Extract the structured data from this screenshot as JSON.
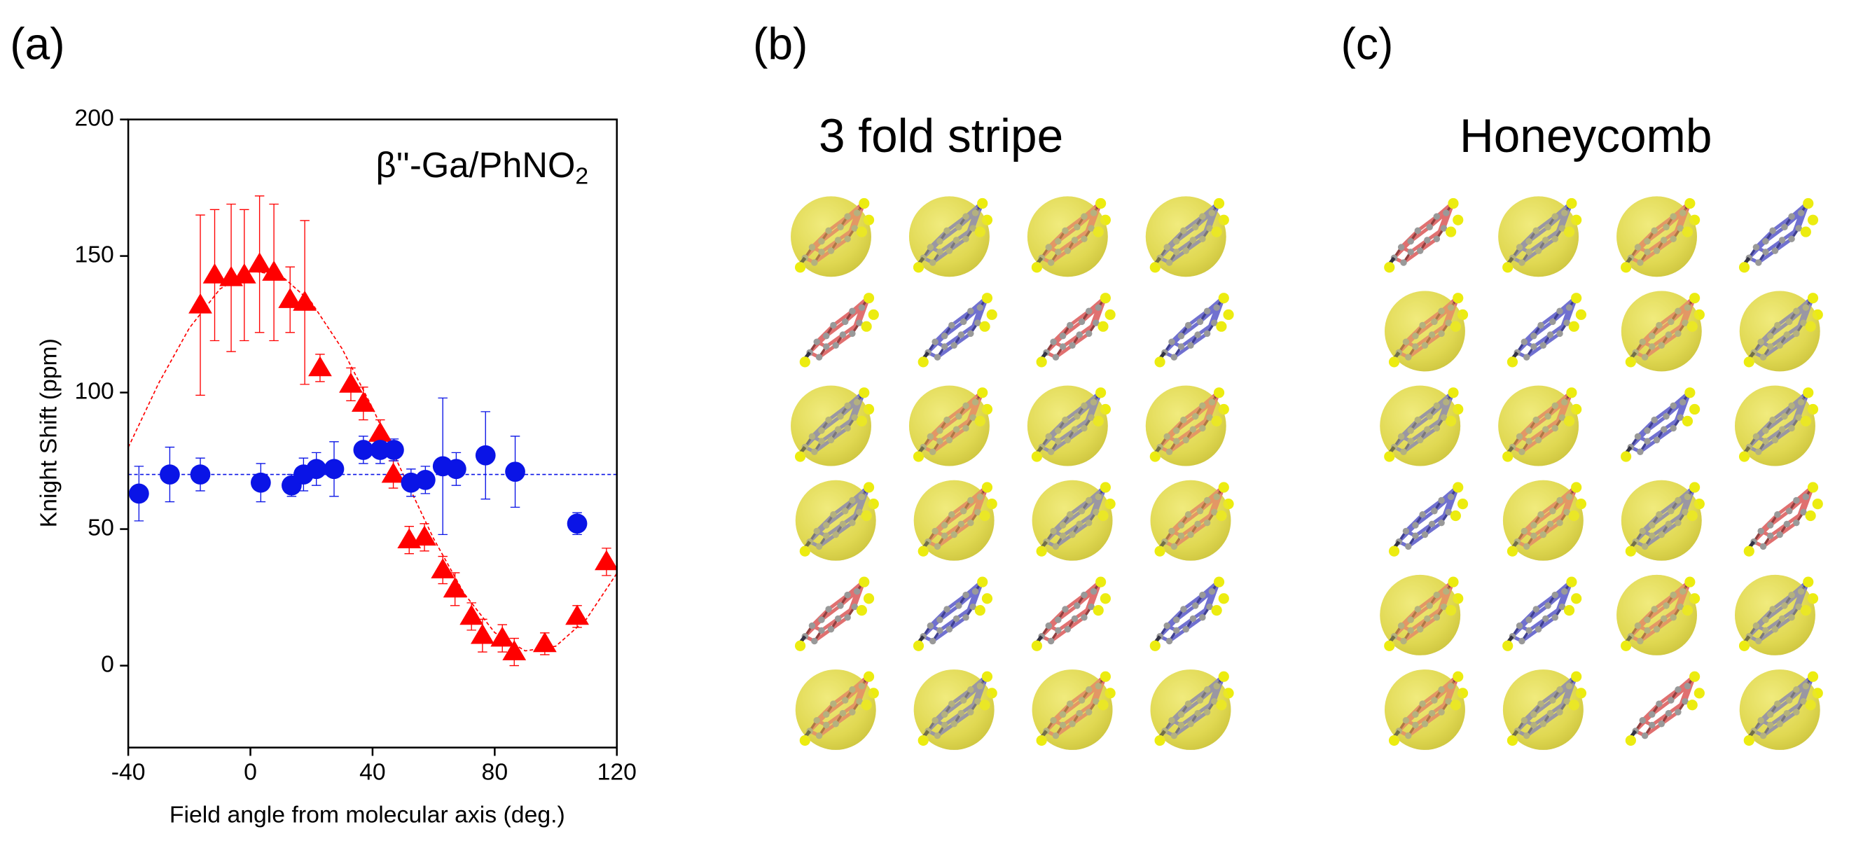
{
  "panels": {
    "a": "(a)",
    "b": "(b)",
    "c": "(c)"
  },
  "chart_data": {
    "type": "scatter",
    "annotation": "β''-Ga/PhNO",
    "annotation_sub": "2",
    "xlabel": "Field angle from molecular axis  (deg.)",
    "ylabel": "Knight Shift  (ppm)",
    "xlim": [
      -40,
      120
    ],
    "ylim": [
      -30,
      200
    ],
    "xticks": [
      -40,
      0,
      40,
      80,
      120
    ],
    "yticks": [
      0,
      50,
      100,
      150,
      200
    ],
    "series": [
      {
        "color": "#ff0000",
        "marker": "triangle",
        "x": [
          -16.4,
          -11.7,
          -6.3,
          -2,
          3,
          7.7,
          13,
          17.8,
          22.8,
          32.9,
          37,
          42.5,
          46.8,
          52,
          57,
          63,
          67,
          72.4,
          76,
          82.5,
          86.4,
          96.4,
          107,
          116.6
        ],
        "values": [
          132,
          143,
          142,
          143,
          147,
          144,
          134,
          133,
          109,
          103,
          96,
          85,
          70,
          46,
          47,
          35,
          28,
          18,
          11,
          10,
          5,
          8,
          18,
          38
        ],
        "errors": [
          33,
          24,
          27,
          24,
          25,
          25,
          12,
          30,
          5,
          6,
          6,
          5,
          5,
          5,
          5,
          5,
          6,
          5,
          6,
          5,
          5,
          4,
          4,
          5
        ]
      },
      {
        "color": "#0a14e6",
        "marker": "circle",
        "x": [
          -36.5,
          -26.4,
          -16.4,
          3.4,
          13.5,
          17.4,
          21.6,
          27.4,
          37,
          42.5,
          47,
          52.6,
          57.3,
          63,
          67.4,
          77,
          86.7,
          107
        ],
        "values": [
          63,
          70,
          70,
          67,
          66,
          70,
          72,
          72,
          79,
          79,
          79,
          67,
          68,
          73,
          72,
          77,
          71,
          52
        ],
        "errors": [
          10,
          10,
          6,
          7,
          4,
          6,
          6,
          10,
          5,
          5,
          4,
          5,
          5,
          25,
          6,
          16,
          13,
          4
        ]
      }
    ],
    "fits": [
      {
        "color": "#ff0000",
        "x": [
          -40,
          -30,
          -20,
          -10,
          0,
          10,
          20,
          30,
          40,
          50,
          60,
          70,
          80,
          90,
          100,
          110,
          120
        ],
        "values": [
          79.9,
          103.5,
          123.6,
          137.9,
          144.6,
          142.9,
          133.0,
          116.1,
          94.3,
          70.1,
          46.5,
          26.4,
          12.1,
          5.4,
          7.1,
          17.0,
          33.8
        ]
      },
      {
        "color": "#0a14e6",
        "x": [
          -40,
          120
        ],
        "values": [
          70,
          70
        ]
      }
    ]
  },
  "diagrams": [
    {
      "title": "3 fold stripe"
    },
    {
      "title": "Honeycomb"
    }
  ]
}
